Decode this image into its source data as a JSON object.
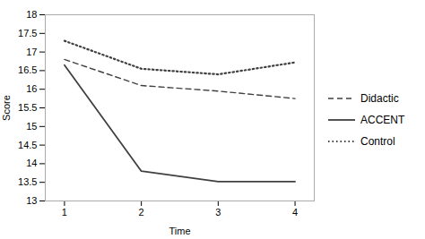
{
  "chart_data": {
    "type": "line",
    "x": [
      1,
      2,
      3,
      4
    ],
    "series": [
      {
        "name": "Didactic",
        "color": "#404040",
        "line_style": "dashed",
        "values": [
          16.8,
          16.1,
          15.95,
          15.75
        ]
      },
      {
        "name": "ACCENT",
        "color": "#404040",
        "line_style": "solid",
        "values": [
          16.65,
          13.8,
          13.52,
          13.52
        ]
      },
      {
        "name": "Control",
        "color": "#404040",
        "line_style": "dotted",
        "values": [
          17.3,
          16.55,
          16.4,
          16.72
        ]
      }
    ],
    "xlabel": "Time",
    "ylabel": "Score",
    "xlim": [
      0.75,
      4.25
    ],
    "xticks": [
      1,
      2,
      3,
      4
    ],
    "ylim": [
      13,
      18
    ],
    "yticks": [
      13,
      13.5,
      14,
      14.5,
      15,
      15.5,
      16,
      16.5,
      17,
      17.5,
      18
    ],
    "grid": false,
    "legend": "right"
  }
}
